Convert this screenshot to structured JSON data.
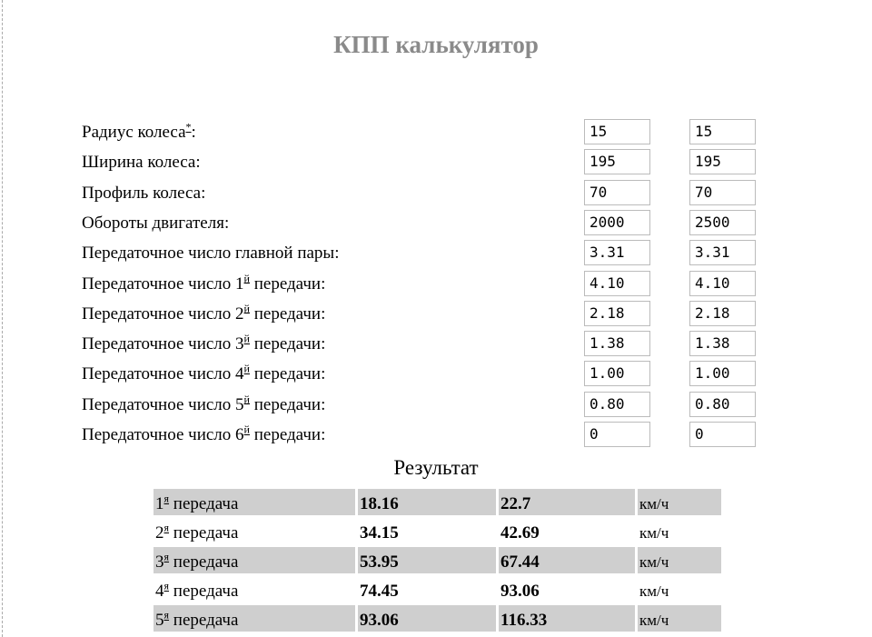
{
  "title": "КПП калькулятор",
  "fields": [
    {
      "label": "Радиус колеса",
      "sup": "*",
      "suffix": ":",
      "v1": "15",
      "v2": "15"
    },
    {
      "label": "Ширина колеса:",
      "sup": "",
      "suffix": "",
      "v1": "195",
      "v2": "195"
    },
    {
      "label": "Профиль колеса:",
      "sup": "",
      "suffix": "",
      "v1": "70",
      "v2": "70"
    },
    {
      "label": "Обороты двигателя:",
      "sup": "",
      "suffix": "",
      "v1": "2000",
      "v2": "2500"
    },
    {
      "label": "Передаточное число главной пары:",
      "sup": "",
      "suffix": "",
      "v1": "3.31",
      "v2": "3.31"
    },
    {
      "label": "Передаточное число 1",
      "sup": "й",
      "suffix": " передачи:",
      "v1": "4.10",
      "v2": "4.10"
    },
    {
      "label": "Передаточное число 2",
      "sup": "й",
      "suffix": " передачи:",
      "v1": "2.18",
      "v2": "2.18"
    },
    {
      "label": "Передаточное число 3",
      "sup": "й",
      "suffix": " передачи:",
      "v1": "1.38",
      "v2": "1.38"
    },
    {
      "label": "Передаточное число 4",
      "sup": "й",
      "suffix": " передачи:",
      "v1": "1.00",
      "v2": "1.00"
    },
    {
      "label": "Передаточное число 5",
      "sup": "й",
      "suffix": " передачи:",
      "v1": "0.80",
      "v2": "0.80"
    },
    {
      "label": "Передаточное число 6",
      "sup": "й",
      "suffix": " передачи:",
      "v1": "0",
      "v2": "0"
    }
  ],
  "result": {
    "title": "Результат",
    "rows": [
      {
        "gear": "1",
        "sup": "я",
        "label": " передача",
        "s1": "18.16",
        "s2": "22.7",
        "unit": "км/ч"
      },
      {
        "gear": "2",
        "sup": "я",
        "label": " передача",
        "s1": "34.15",
        "s2": "42.69",
        "unit": "км/ч"
      },
      {
        "gear": "3",
        "sup": "я",
        "label": " передача",
        "s1": "53.95",
        "s2": "67.44",
        "unit": "км/ч"
      },
      {
        "gear": "4",
        "sup": "я",
        "label": " передача",
        "s1": "74.45",
        "s2": "93.06",
        "unit": "км/ч"
      },
      {
        "gear": "5",
        "sup": "я",
        "label": " передача",
        "s1": "93.06",
        "s2": "116.33",
        "unit": "км/ч"
      }
    ]
  },
  "colors": {
    "title": "#8a8a8a",
    "row_stripe": "#cfcfcf"
  }
}
